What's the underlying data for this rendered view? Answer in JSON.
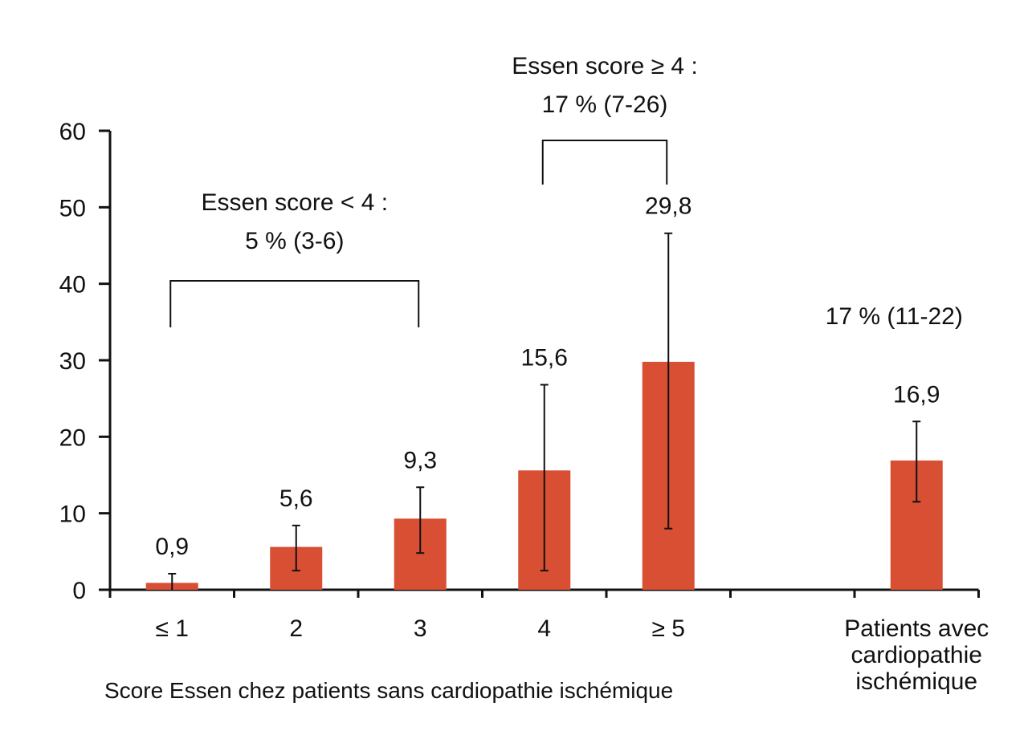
{
  "chart_data": {
    "type": "bar",
    "title": "",
    "xlabel": "Score Essen chez patients sans cardiopathie ischémique",
    "ylabel": "",
    "ylim": [
      0,
      60
    ],
    "yticks": [
      0,
      10,
      20,
      30,
      40,
      50,
      60
    ],
    "grid": false,
    "bar_color": "#d84f34",
    "categories": [
      "≤ 1",
      "2",
      "3",
      "4",
      "≥ 5",
      "",
      "Patients avec cardiopathie ischémique"
    ],
    "category_lines": [
      [
        "≤ 1"
      ],
      [
        "2"
      ],
      [
        "3"
      ],
      [
        "4"
      ],
      [
        "≥ 5"
      ],
      [],
      [
        "Patients avec",
        "cardiopathie",
        "ischémique"
      ]
    ],
    "series": [
      {
        "values": [
          0.9,
          5.6,
          9.3,
          15.6,
          29.8,
          null,
          16.9
        ],
        "labels": [
          "0,9",
          "5,6",
          "9,3",
          "15,6",
          "29,8",
          "",
          "16,9"
        ],
        "ci_low": [
          0,
          2.5,
          4.8,
          2.5,
          8,
          null,
          11.5
        ],
        "ci_high": [
          2.1,
          8.4,
          13.4,
          26.8,
          46.6,
          null,
          22
        ]
      }
    ],
    "annotations": [
      {
        "lines": [
          "Essen score < 4 :",
          "5 % (3-6)"
        ],
        "from_category": 0,
        "to_category": 2
      },
      {
        "lines": [
          "Essen score ≥ 4 :",
          "17 % (7-26)"
        ],
        "from_category": 3,
        "to_category": 4
      },
      {
        "lines": [
          "17 % (11-22)"
        ],
        "category": 6
      }
    ]
  }
}
